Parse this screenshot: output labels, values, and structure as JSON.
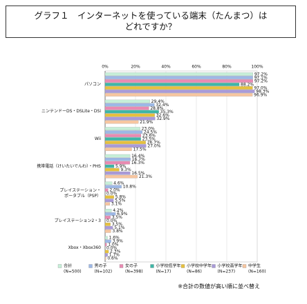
{
  "chart_data": {
    "type": "bar",
    "orientation": "horizontal",
    "title": "グラフ１　インターネットを使っている端末（たんまつ）は\nどれですか？",
    "note": "※合計の数値が高い順に並べ替え",
    "categories": [
      "パソコン",
      "ニンテンドーDS・DSLite・DSi",
      "Wii",
      "携帯電話（けいたいでんわ）・PHS",
      "プレイステーション・\nポータブル（PSP）",
      "プレイステーション2・3",
      "Xbox・Xbox360"
    ],
    "xlim": [
      0,
      100
    ],
    "xticks": [
      {
        "value": 0,
        "label": "0%"
      },
      {
        "value": 20,
        "label": "20%"
      },
      {
        "value": 40,
        "label": "40%"
      },
      {
        "value": 60,
        "label": "60%"
      },
      {
        "value": 80,
        "label": "80%"
      },
      {
        "value": 100,
        "label": "100%"
      }
    ],
    "grid": true,
    "series": [
      {
        "name": "合計",
        "n": "(N=500)",
        "color": "#c6efd8",
        "values": [
          97.2,
          29.4,
          23.0,
          16.4,
          4.6,
          4.2,
          1.6
        ],
        "value_labels": [
          "97.2%",
          "29.4%",
          "23.0%",
          "16.4%",
          "4.6%",
          "4.2%",
          "1.6%"
        ]
      },
      {
        "name": "男の子",
        "n": "(N=102)",
        "color": "#9db8e6",
        "values": [
          97.1,
          32.4,
          24.5,
          16.7,
          10.8,
          6.9,
          3.9
        ],
        "value_labels": [
          "97.1%",
          "32.4%",
          "24.5%",
          "16.7%",
          "10.8%",
          "6.9%",
          "3.9%"
        ]
      },
      {
        "name": "女の子",
        "n": "(N=398)",
        "color": "#e98ab2",
        "values": [
          97.2,
          28.8,
          23.6,
          16.3,
          2.0,
          3.5,
          1.0
        ],
        "value_labels": [
          "97.2%",
          "28.8%",
          "23.6%",
          "16.3%",
          "2.0%",
          "3.5%",
          "1.0%"
        ]
      },
      {
        "name": "小学校低学年",
        "n": "(N=17)",
        "color": "#3fb6a6",
        "values": [
          88.2,
          35.3,
          23.5,
          5.9,
          0.0,
          0.0,
          0.0
        ],
        "value_labels": [
          "88.2%",
          "35.3%",
          "23.5%",
          "5.9%",
          "0.0%",
          "0.0%",
          "0.0%"
        ]
      },
      {
        "name": "小学校中学年",
        "n": "(N=86)",
        "color": "#e6c03e",
        "values": [
          97.0,
          32.6,
          26.7,
          9.3,
          5.8,
          3.5,
          2.3
        ],
        "value_labels": [
          "97.0%",
          "32.6%",
          "26.7%",
          "9.3%",
          "5.8%",
          "3.5%",
          "2.3%"
        ]
      },
      {
        "name": "小学校高学年",
        "n": "(N=237)",
        "color": "#a99ad8",
        "values": [
          98.3,
          32.9,
          27.0,
          16.5,
          5.5,
          5.1,
          1.7
        ],
        "value_labels": [
          "98.3%",
          "32.9%",
          "27.0%",
          "16.5%",
          "5.5%",
          "5.1%",
          "1.7%"
        ]
      },
      {
        "name": "中学生",
        "n": "(N=160)",
        "color": "#f7c6a0",
        "values": [
          96.9,
          21.9,
          17.5,
          21.3,
          3.1,
          3.8,
          0.6
        ],
        "value_labels": [
          "96.9%",
          "21.9%",
          "17.5%",
          "21.3%",
          "3.1%",
          "3.8%",
          "0.6%"
        ]
      }
    ]
  }
}
